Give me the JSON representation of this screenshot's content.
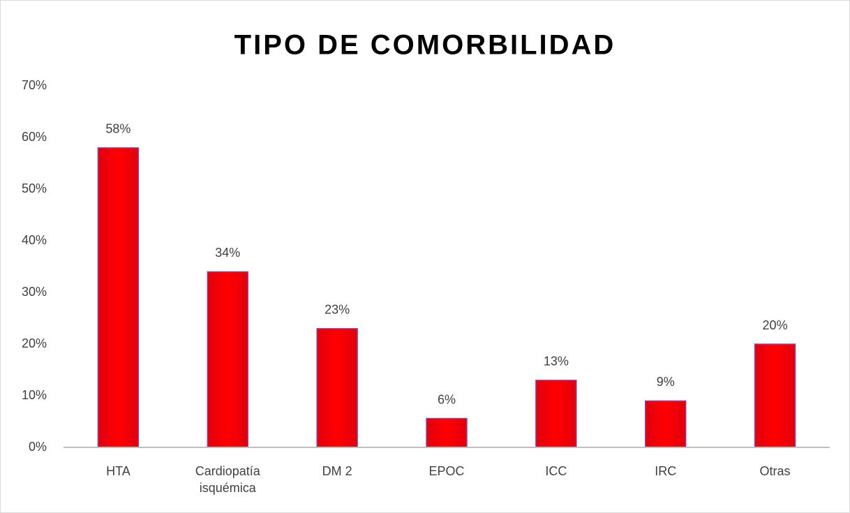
{
  "chart_data": {
    "type": "bar",
    "title": "TIPO DE COMORBILIDAD",
    "categories": [
      "HTA",
      "Cardiopatía isquémica",
      "DM 2",
      "EPOC",
      "ICC",
      "IRC",
      "Otras"
    ],
    "values": [
      58,
      34,
      23,
      5.6,
      13,
      9,
      20
    ],
    "value_labels": [
      "58%",
      "34%",
      "23%",
      "6%",
      "13%",
      "9%",
      "20%"
    ],
    "color": "#ff0000",
    "ylim": [
      0,
      70
    ],
    "yticks": [
      {
        "value": 0,
        "label": "0%"
      },
      {
        "value": 10,
        "label": "10%"
      },
      {
        "value": 20,
        "label": "20%"
      },
      {
        "value": 30,
        "label": "30%"
      },
      {
        "value": 40,
        "label": "40%"
      },
      {
        "value": 50,
        "label": "50%"
      },
      {
        "value": 60,
        "label": "60%"
      },
      {
        "value": 70,
        "label": "70%"
      }
    ],
    "grid": false
  }
}
